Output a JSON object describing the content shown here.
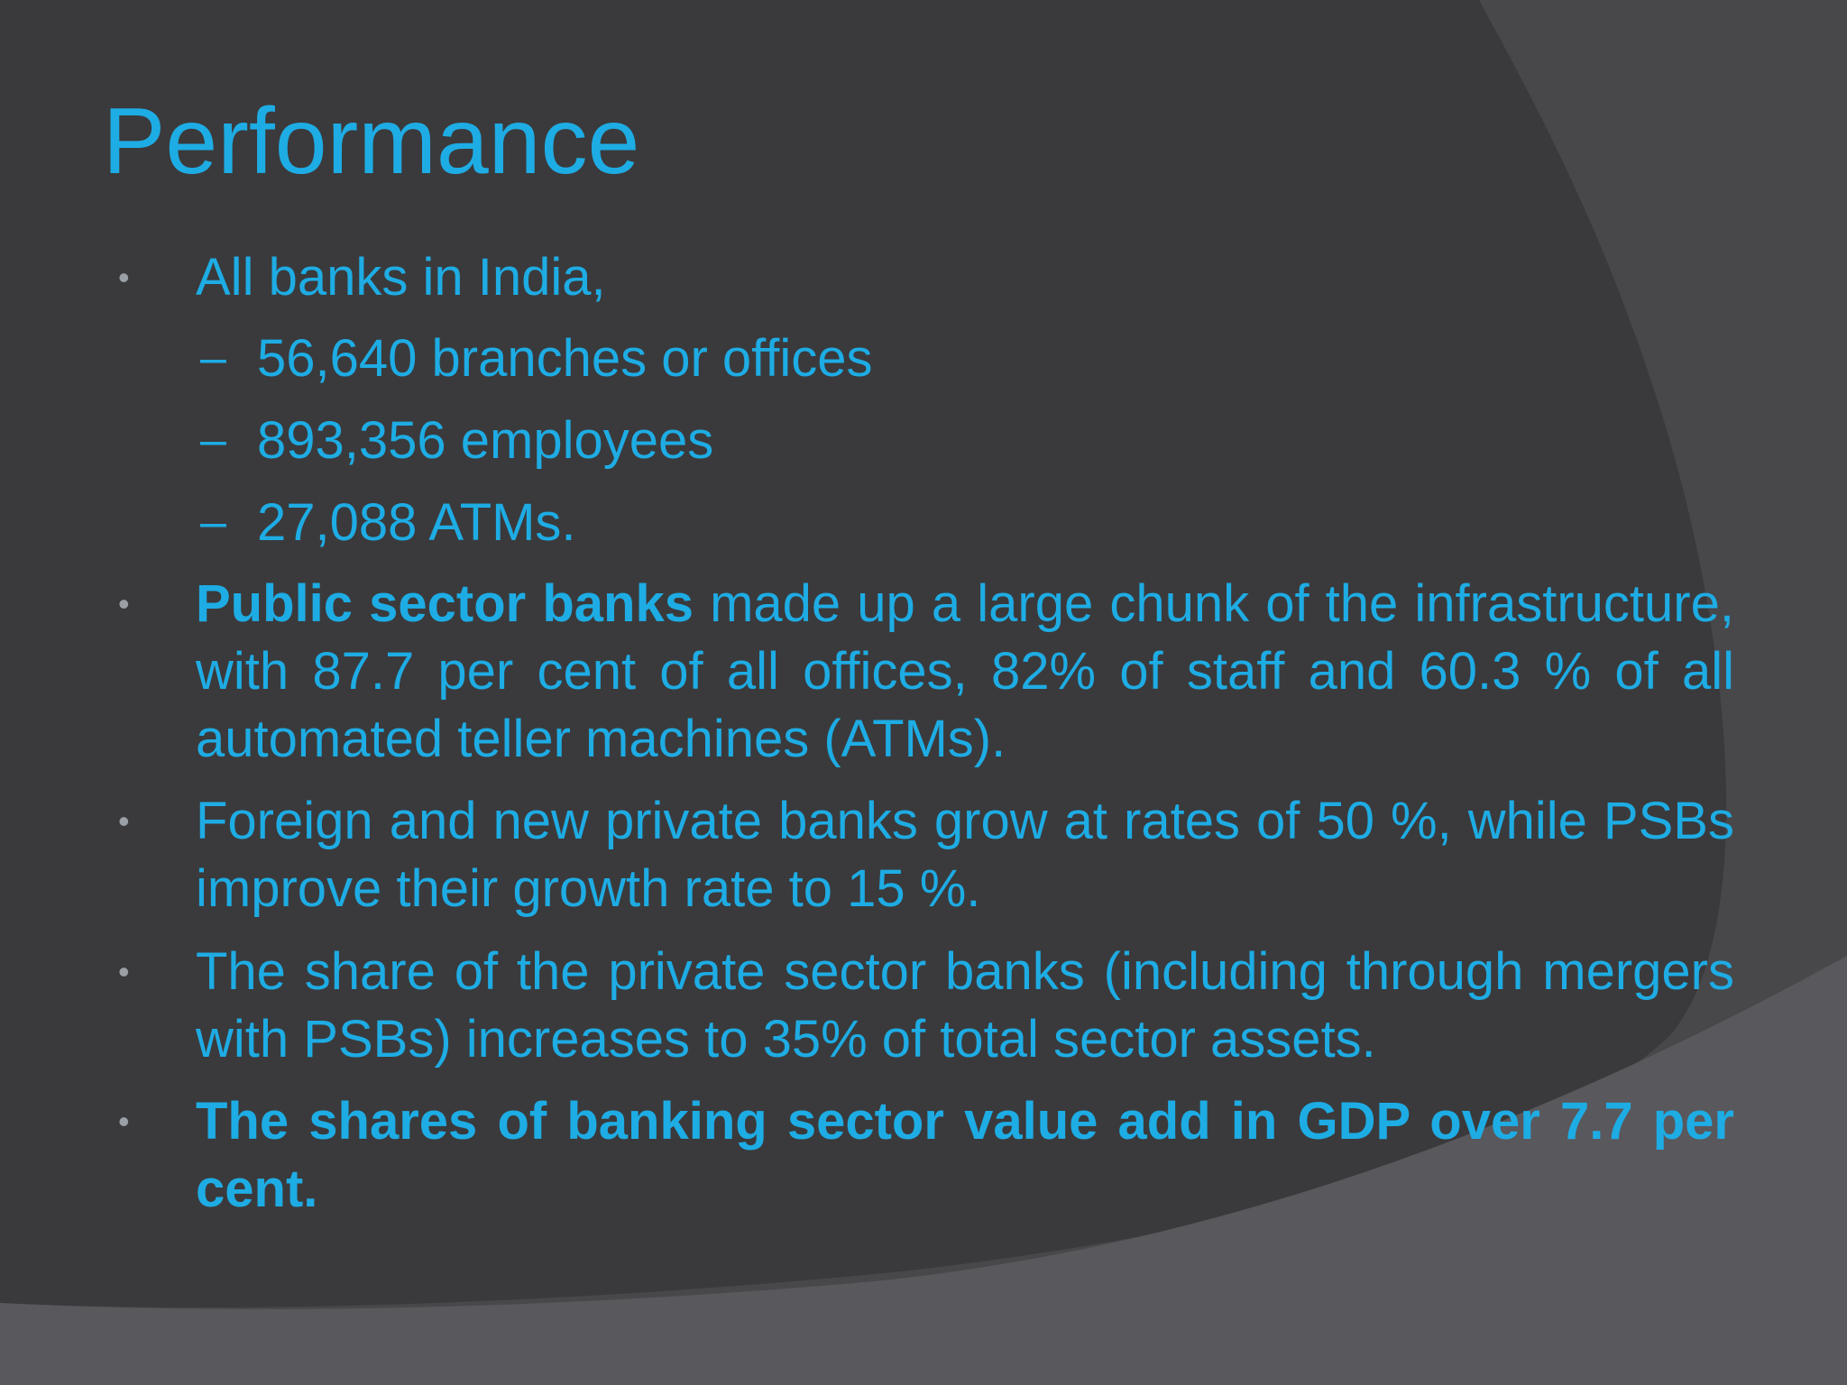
{
  "slide": {
    "title": "Performance",
    "colors": {
      "text": "#1eace4",
      "background": "#3a3a3c",
      "shape_mid": "#48484b",
      "shape_light": "#59585c",
      "bullet": "#9aa0a6"
    },
    "bullets": [
      {
        "text": "All banks in India,",
        "sub_items": [
          "56,640 branches or offices",
          "893,356 employees",
          "27,088 ATMs."
        ]
      },
      {
        "bold_lead": "Public sector banks",
        "text": " made up a large chunk of the infrastructure, with 87.7 per cent of all offices, 82% of staff and  60.3 % of all automated teller machines (ATMs)."
      },
      {
        "text": "Foreign and new private banks grow at rates of 50 %, while PSBs improve their growth rate to 15 %."
      },
      {
        "text": "The share of the private sector banks (including through mergers with PSBs) increases to 35%  of total sector assets."
      },
      {
        "text": "The shares of banking sector value add in GDP over 7.7 per cent."
      }
    ]
  }
}
